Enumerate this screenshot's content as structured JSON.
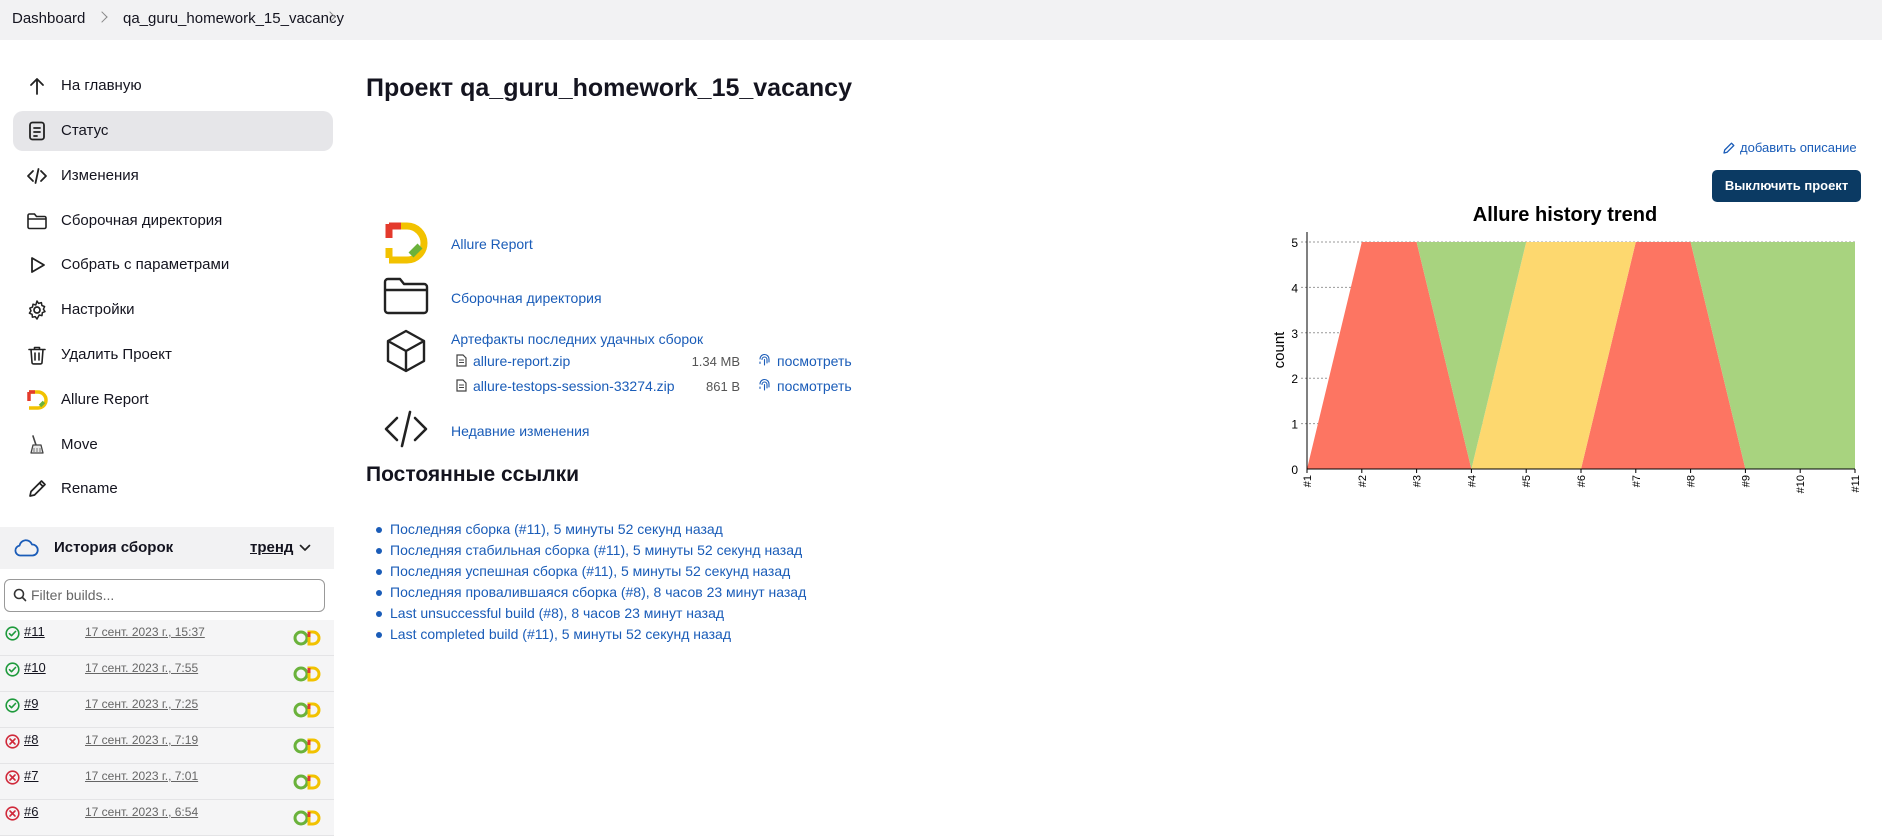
{
  "breadcrumb": {
    "items": [
      "Dashboard",
      "qa_guru_homework_15_vacancy"
    ]
  },
  "sidebar": {
    "items": [
      {
        "label": "На главную",
        "icon": "arrow-up-icon"
      },
      {
        "label": "Статус",
        "icon": "document-icon",
        "active": true
      },
      {
        "label": "Изменения",
        "icon": "code-icon"
      },
      {
        "label": "Сборочная директория",
        "icon": "folder-icon"
      },
      {
        "label": "Собрать с параметрами",
        "icon": "play-icon"
      },
      {
        "label": "Настройки",
        "icon": "gear-icon"
      },
      {
        "label": "Удалить Проект",
        "icon": "trash-icon"
      },
      {
        "label": "Allure Report",
        "icon": "allure-icon"
      },
      {
        "label": "Move",
        "icon": "broom-icon"
      },
      {
        "label": "Rename",
        "icon": "pencil-icon"
      }
    ]
  },
  "history": {
    "title": "История сборок",
    "trend_label": "тренд",
    "filter_placeholder": "Filter builds...",
    "builds": [
      {
        "number": "#11",
        "date": "17 сент. 2023 г., 15:37",
        "status": "success"
      },
      {
        "number": "#10",
        "date": "17 сент. 2023 г., 7:55",
        "status": "success"
      },
      {
        "number": "#9",
        "date": "17 сент. 2023 г., 7:25",
        "status": "success"
      },
      {
        "number": "#8",
        "date": "17 сент. 2023 г., 7:19",
        "status": "failed"
      },
      {
        "number": "#7",
        "date": "17 сент. 2023 г., 7:01",
        "status": "failed"
      },
      {
        "number": "#6",
        "date": "17 сент. 2023 г., 6:54",
        "status": "failed"
      }
    ]
  },
  "main": {
    "title": "Проект qa_guru_homework_15_vacancy",
    "add_description": "добавить описание",
    "disable_button": "Выключить проект",
    "links": {
      "allure_report": "Allure Report",
      "workspace": "Сборочная директория",
      "artifacts_title": "Артефакты последних удачных сборок",
      "recent_changes": "Недавние изменения"
    },
    "artifacts": [
      {
        "name": "allure-report.zip",
        "size": "1.34 MB",
        "view": "посмотреть"
      },
      {
        "name": "allure-testops-session-33274.zip",
        "size": "861 B",
        "view": "посмотреть"
      }
    ],
    "permalinks_title": "Постоянные ссылки",
    "permalinks": [
      "Последняя сборка (#11), 5 минуты 52 секунд назад",
      "Последняя стабильная сборка (#11), 5 минуты 52 секунд назад",
      "Последняя успешная сборка (#11), 5 минуты 52 секунд назад",
      "Последняя провалившаяся сборка (#8), 8 часов 23 минут назад",
      "Last unsuccessful build (#8), 8 часов 23 минут назад",
      "Last completed build (#11), 5 минуты 52 секунд назад"
    ]
  },
  "colors": {
    "success": "#a8d37f",
    "failed": "#fd7562",
    "broken": "#fdd86f",
    "link": "#1a5cb8",
    "button": "#0b3a63"
  },
  "chart_data": {
    "type": "area",
    "title": "Allure history trend",
    "ylabel": "count",
    "xlabel": "",
    "categories": [
      "#1",
      "#2",
      "#3",
      "#4",
      "#5",
      "#6",
      "#7",
      "#8",
      "#9",
      "#10",
      "#11"
    ],
    "ylim": [
      0,
      5
    ],
    "yticks": [
      0,
      1,
      2,
      3,
      4,
      5
    ],
    "series": [
      {
        "key": "failed",
        "values": [
          0,
          5,
          5,
          0,
          0,
          0,
          5,
          5,
          0,
          0,
          0
        ]
      },
      {
        "key": "broken",
        "values": [
          0,
          0,
          0,
          0,
          5,
          5,
          0,
          0,
          0,
          0,
          0
        ]
      },
      {
        "key": "passed",
        "values": [
          0,
          0,
          0,
          5,
          0,
          0,
          0,
          0,
          5,
          5,
          5
        ]
      }
    ]
  }
}
